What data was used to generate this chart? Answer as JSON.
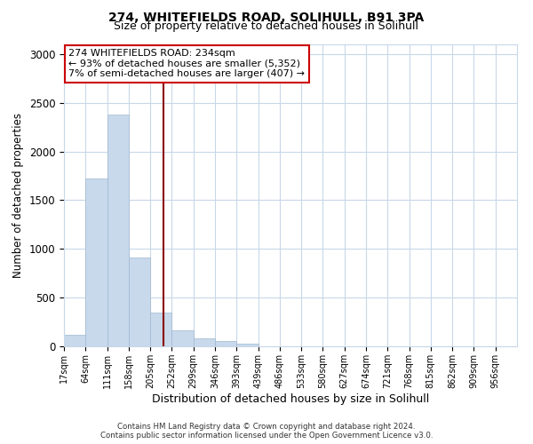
{
  "title": "274, WHITEFIELDS ROAD, SOLIHULL, B91 3PA",
  "subtitle": "Size of property relative to detached houses in Solihull",
  "xlabel": "Distribution of detached houses by size in Solihull",
  "ylabel": "Number of detached properties",
  "bin_labels": [
    "17sqm",
    "64sqm",
    "111sqm",
    "158sqm",
    "205sqm",
    "252sqm",
    "299sqm",
    "346sqm",
    "393sqm",
    "439sqm",
    "486sqm",
    "533sqm",
    "580sqm",
    "627sqm",
    "674sqm",
    "721sqm",
    "768sqm",
    "815sqm",
    "862sqm",
    "909sqm",
    "956sqm"
  ],
  "bar_values": [
    120,
    1720,
    2380,
    910,
    350,
    160,
    85,
    55,
    30,
    0,
    0,
    0,
    0,
    0,
    0,
    0,
    0,
    0,
    0,
    0,
    0
  ],
  "bar_color": "#c8d9ec",
  "bar_edge_color": "#a0b8d0",
  "vline_color": "#8b0000",
  "annotation_text_line1": "274 WHITEFIELDS ROAD: 234sqm",
  "annotation_text_line2": "← 93% of detached houses are smaller (5,352)",
  "annotation_text_line3": "7% of semi-detached houses are larger (407) →",
  "annotation_box_color": "#ffffff",
  "annotation_border_color": "#cc0000",
  "ylim": [
    0,
    3100
  ],
  "yticks": [
    0,
    500,
    1000,
    1500,
    2000,
    2500,
    3000
  ],
  "footer_line1": "Contains HM Land Registry data © Crown copyright and database right 2024.",
  "footer_line2": "Contains public sector information licensed under the Open Government Licence v3.0.",
  "background_color": "#ffffff",
  "grid_color": "#c8d8e8",
  "title_fontsize": 10,
  "subtitle_fontsize": 9,
  "annotation_fontsize": 8,
  "ylabel_fontsize": 8.5,
  "xlabel_fontsize": 9
}
